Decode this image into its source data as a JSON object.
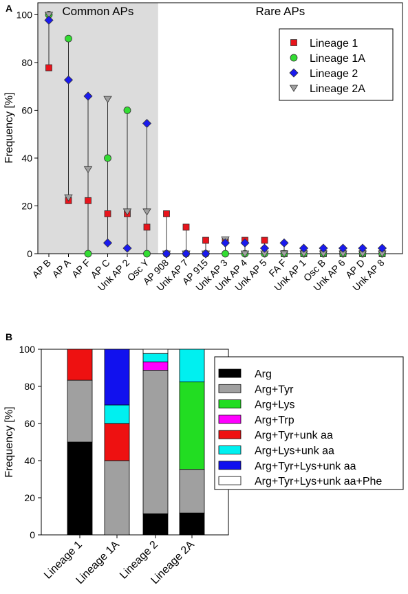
{
  "chart_data": [
    {
      "panel_label": "A",
      "type": "scatter",
      "region_labels": [
        "Common APs",
        "Rare APs"
      ],
      "ylabel": "Frequency [%]",
      "ylim": [
        0,
        105
      ],
      "yticks": [
        0,
        20,
        40,
        60,
        80,
        100
      ],
      "shaded_categories": 6,
      "categories": [
        "AP B",
        "AP A",
        "AP F",
        "AP C",
        "Unk AP 2",
        "Osc Y",
        "AP 908",
        "Unk AP 7",
        "AP 915",
        "Unk AP 3",
        "Unk AP 4",
        "Unk AP 5",
        "FA F",
        "Unk AP 1",
        "Osc B",
        "Unk AP 6",
        "AP D",
        "Unk AP 8"
      ],
      "legend_position": "top-right",
      "series": [
        {
          "name": "Lineage 1",
          "marker": "square",
          "color": "#e8141c",
          "values": [
            77.8,
            22.2,
            22.2,
            16.7,
            16.7,
            11.1,
            16.7,
            11.1,
            5.6,
            5.6,
            5.6,
            5.6,
            0,
            0,
            0,
            0,
            0,
            0
          ]
        },
        {
          "name": "Lineage 1A",
          "marker": "circle",
          "color": "#33dd33",
          "values": [
            100,
            90,
            0,
            40,
            60,
            0,
            0,
            0,
            0,
            0,
            0,
            0,
            0,
            0,
            0,
            0,
            0,
            0
          ]
        },
        {
          "name": "Lineage 2",
          "marker": "diamond",
          "color": "#1a1aee",
          "values": [
            97.7,
            72.7,
            65.9,
            4.5,
            2.3,
            54.5,
            0,
            0,
            0,
            4.5,
            4.5,
            2.3,
            4.5,
            2.3,
            2.3,
            2.3,
            2.3,
            2.3
          ]
        },
        {
          "name": "Lineage 2A",
          "marker": "triangle",
          "color": "#a0a0a0",
          "values": [
            100,
            23.5,
            35.3,
            64.7,
            17.6,
            17.6,
            0,
            0,
            0,
            5.9,
            0,
            0,
            0,
            0,
            0,
            0,
            0,
            0
          ]
        }
      ]
    },
    {
      "panel_label": "B",
      "type": "bar",
      "stacked": true,
      "ylabel": "Frequency [%]",
      "ylim": [
        0,
        100
      ],
      "yticks": [
        0,
        20,
        40,
        60,
        80,
        100
      ],
      "categories": [
        "Lineage 1",
        "Lineage 1A",
        "Lineage 2",
        "Lineage 2A"
      ],
      "legend_position": "right",
      "series": [
        {
          "name": "Arg",
          "color": "#000000",
          "values": [
            50,
            0,
            11.4,
            11.8
          ]
        },
        {
          "name": "Arg+Tyr",
          "color": "#a0a0a0",
          "values": [
            33.3,
            40,
            77.3,
            23.5
          ]
        },
        {
          "name": "Arg+Lys",
          "color": "#22dd22",
          "values": [
            0,
            0,
            0,
            47.1
          ]
        },
        {
          "name": "Arg+Trp",
          "color": "#ff00ff",
          "values": [
            0,
            0,
            4.5,
            0
          ]
        },
        {
          "name": "Arg+Tyr+unk aa",
          "color": "#ee1111",
          "values": [
            16.7,
            20,
            0,
            0
          ]
        },
        {
          "name": "Arg+Lys+unk aa",
          "color": "#00f0f0",
          "values": [
            0,
            10,
            4.5,
            17.6
          ]
        },
        {
          "name": "Arg+Tyr+Lys+unk aa",
          "color": "#1111ee",
          "values": [
            0,
            30,
            0,
            0
          ]
        },
        {
          "name": "Arg+Tyr+Lys+unk aa+Phe",
          "color": "#ffffff",
          "values": [
            0,
            0,
            2.3,
            0
          ]
        }
      ]
    }
  ]
}
